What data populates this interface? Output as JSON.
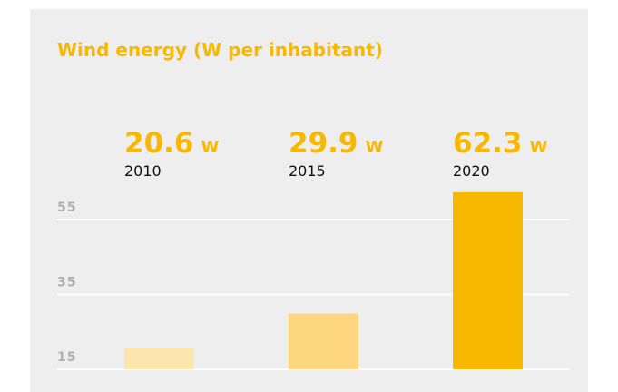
{
  "chart_data": {
    "type": "bar",
    "title": "Wind energy (W per inhabitant)",
    "categories": [
      "2010",
      "2015",
      "2020"
    ],
    "values": [
      20.6,
      29.9,
      62.3
    ],
    "unit": "W",
    "colors": [
      "#fde6ae",
      "#fed67f",
      "#f9b800"
    ],
    "ylim": [
      15,
      65
    ],
    "yticks": [
      15,
      35,
      55
    ],
    "grid": true
  }
}
